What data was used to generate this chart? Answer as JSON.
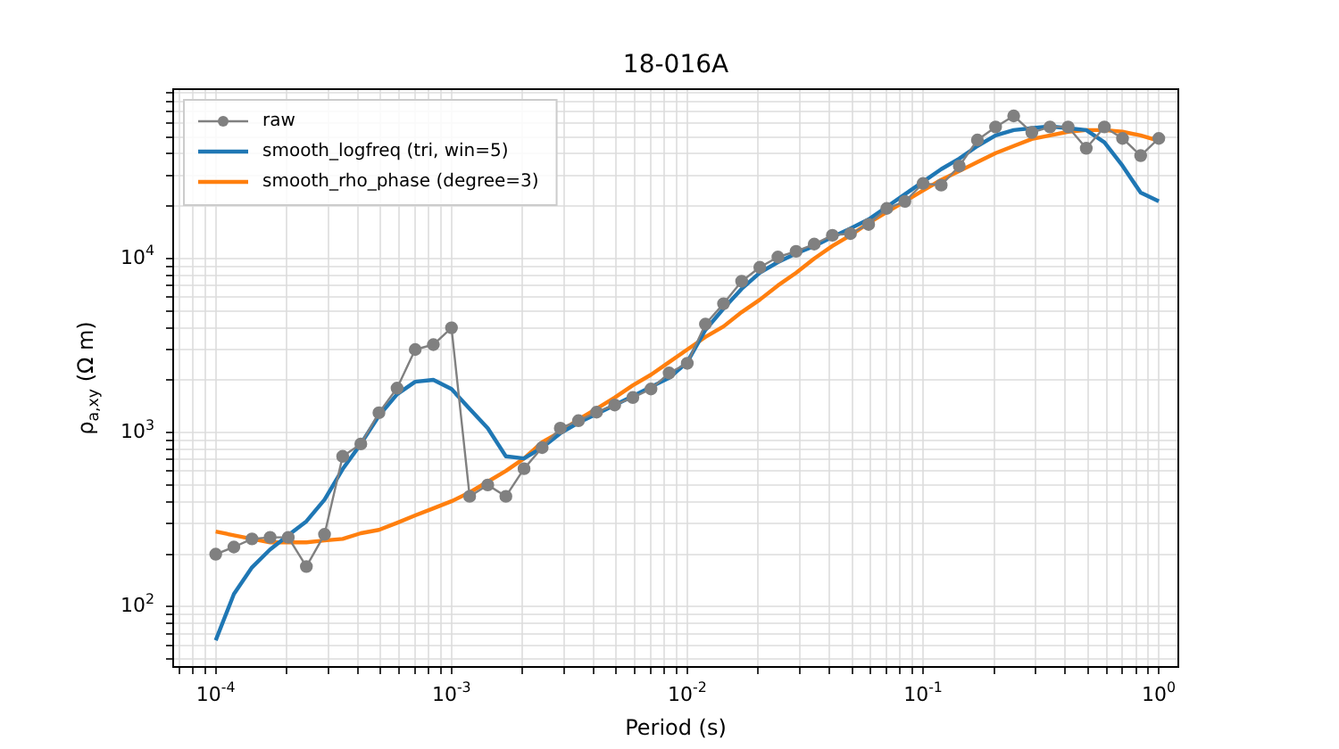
{
  "chart_data": {
    "type": "line",
    "title": "18-016A",
    "xlabel": "Period (s)",
    "ylabel": "ρ$_{a,xy}$ (Ω m)",
    "log": "xy",
    "grid": true,
    "legend": "top left",
    "xlim": [
      6.6e-05,
      1.21
    ],
    "ylim": [
      45,
      94000
    ],
    "xticks": [
      {
        "value": 7e-05,
        "label": null
      },
      {
        "value": 8e-05,
        "label": null
      },
      {
        "value": 9e-05,
        "label": null
      },
      {
        "value": 0.0001,
        "label": "10$^{-4}$"
      },
      {
        "value": 0.0002,
        "label": null
      },
      {
        "value": 0.0003,
        "label": null
      },
      {
        "value": 0.0004,
        "label": null
      },
      {
        "value": 0.0005,
        "label": null
      },
      {
        "value": 0.0006,
        "label": null
      },
      {
        "value": 0.0007,
        "label": null
      },
      {
        "value": 0.0008,
        "label": null
      },
      {
        "value": 0.0009,
        "label": null
      },
      {
        "value": 0.001,
        "label": "10$^{-3}$"
      },
      {
        "value": 0.002,
        "label": null
      },
      {
        "value": 0.003,
        "label": null
      },
      {
        "value": 0.004,
        "label": null
      },
      {
        "value": 0.005,
        "label": null
      },
      {
        "value": 0.006,
        "label": null
      },
      {
        "value": 0.007,
        "label": null
      },
      {
        "value": 0.008,
        "label": null
      },
      {
        "value": 0.009,
        "label": null
      },
      {
        "value": 0.01,
        "label": "10$^{-2}$"
      },
      {
        "value": 0.02,
        "label": null
      },
      {
        "value": 0.03,
        "label": null
      },
      {
        "value": 0.04,
        "label": null
      },
      {
        "value": 0.05,
        "label": null
      },
      {
        "value": 0.06,
        "label": null
      },
      {
        "value": 0.07,
        "label": null
      },
      {
        "value": 0.08,
        "label": null
      },
      {
        "value": 0.09,
        "label": null
      },
      {
        "value": 0.1,
        "label": "10$^{-1}$"
      },
      {
        "value": 0.2,
        "label": null
      },
      {
        "value": 0.3,
        "label": null
      },
      {
        "value": 0.4,
        "label": null
      },
      {
        "value": 0.5,
        "label": null
      },
      {
        "value": 0.6,
        "label": null
      },
      {
        "value": 0.7,
        "label": null
      },
      {
        "value": 0.8,
        "label": null
      },
      {
        "value": 0.9,
        "label": null
      },
      {
        "value": 1,
        "label": "10$^{0}$"
      }
    ],
    "yticks": [
      {
        "value": 50,
        "label": null
      },
      {
        "value": 60,
        "label": null
      },
      {
        "value": 70,
        "label": null
      },
      {
        "value": 80,
        "label": null
      },
      {
        "value": 90,
        "label": null
      },
      {
        "value": 100,
        "label": "10$^{2}$"
      },
      {
        "value": 200,
        "label": null
      },
      {
        "value": 300,
        "label": null
      },
      {
        "value": 400,
        "label": null
      },
      {
        "value": 500,
        "label": null
      },
      {
        "value": 600,
        "label": null
      },
      {
        "value": 700,
        "label": null
      },
      {
        "value": 800,
        "label": null
      },
      {
        "value": 900,
        "label": null
      },
      {
        "value": 1000,
        "label": "10$^{3}$"
      },
      {
        "value": 2000,
        "label": null
      },
      {
        "value": 3000,
        "label": null
      },
      {
        "value": 4000,
        "label": null
      },
      {
        "value": 5000,
        "label": null
      },
      {
        "value": 6000,
        "label": null
      },
      {
        "value": 7000,
        "label": null
      },
      {
        "value": 8000,
        "label": null
      },
      {
        "value": 9000,
        "label": null
      },
      {
        "value": 10000,
        "label": "10$^{4}$"
      },
      {
        "value": 20000,
        "label": null
      },
      {
        "value": 30000,
        "label": null
      },
      {
        "value": 40000,
        "label": null
      },
      {
        "value": 50000,
        "label": null
      },
      {
        "value": 60000,
        "label": null
      },
      {
        "value": 70000,
        "label": null
      },
      {
        "value": 80000,
        "label": null
      },
      {
        "value": 90000,
        "label": null
      }
    ],
    "x": [
      0.0001,
      0.0001194,
      0.0001425,
      0.0001701,
      0.0002031,
      0.0002424,
      0.0002894,
      0.0003455,
      0.0004125,
      0.0004924,
      0.0005878,
      0.0007017,
      0.0008377,
      0.001,
      0.001194,
      0.001425,
      0.001701,
      0.002031,
      0.002424,
      0.002894,
      0.003455,
      0.004125,
      0.004924,
      0.005878,
      0.007017,
      0.008377,
      0.01,
      0.01194,
      0.01425,
      0.01701,
      0.02031,
      0.02424,
      0.02894,
      0.03455,
      0.04125,
      0.04924,
      0.05878,
      0.07017,
      0.08377,
      0.1,
      0.1194,
      0.1425,
      0.1701,
      0.2031,
      0.2424,
      0.2894,
      0.3455,
      0.4125,
      0.4924,
      0.5878,
      0.7017,
      0.8377,
      1
    ],
    "series": [
      {
        "name": "raw",
        "color": "#808080",
        "marker": "circle",
        "values": [
          200,
          220,
          245,
          250,
          250,
          170,
          260,
          730,
          860,
          1300,
          1800,
          3000,
          3200,
          4000,
          430,
          500,
          430,
          620,
          820,
          1060,
          1170,
          1310,
          1440,
          1590,
          1780,
          2200,
          2500,
          4200,
          5500,
          7400,
          8900,
          10200,
          11000,
          12100,
          13600,
          13900,
          15700,
          19400,
          21300,
          27000,
          26400,
          34000,
          48000,
          57000,
          66000,
          53000,
          57000,
          57000,
          43000,
          57000,
          49000,
          39000,
          49000
        ]
      },
      {
        "name": "smooth_logfreq (tri, win=5)",
        "color": "#1f77b4",
        "marker": "none",
        "values": [
          64,
          118,
          168,
          213,
          257,
          309,
          412,
          617,
          860,
          1250,
          1660,
          1960,
          2010,
          1780,
          1370,
          1060,
          730,
          710,
          820,
          990,
          1140,
          1280,
          1440,
          1620,
          1830,
          2060,
          2540,
          3890,
          5160,
          6700,
          8280,
          9530,
          10700,
          11800,
          13300,
          14900,
          16800,
          19800,
          23400,
          27600,
          32600,
          37500,
          44300,
          51000,
          54700,
          56100,
          57400,
          56100,
          54700,
          46500,
          34100,
          23900,
          21300
        ]
      },
      {
        "name": "smooth_rho_phase (degree=3)",
        "color": "#ff7f0e",
        "marker": "none",
        "values": [
          270,
          257,
          245,
          234,
          234,
          234,
          240,
          245,
          264,
          276,
          303,
          334,
          367,
          403,
          453,
          522,
          602,
          710,
          880,
          1010,
          1190,
          1370,
          1590,
          1870,
          2150,
          2540,
          3000,
          3540,
          4070,
          4920,
          5800,
          7000,
          8280,
          10000,
          11800,
          13600,
          16000,
          18500,
          21300,
          24600,
          28300,
          31800,
          35800,
          40300,
          44300,
          48600,
          51000,
          53500,
          54700,
          54700,
          53500,
          51000,
          47500
        ]
      }
    ]
  }
}
